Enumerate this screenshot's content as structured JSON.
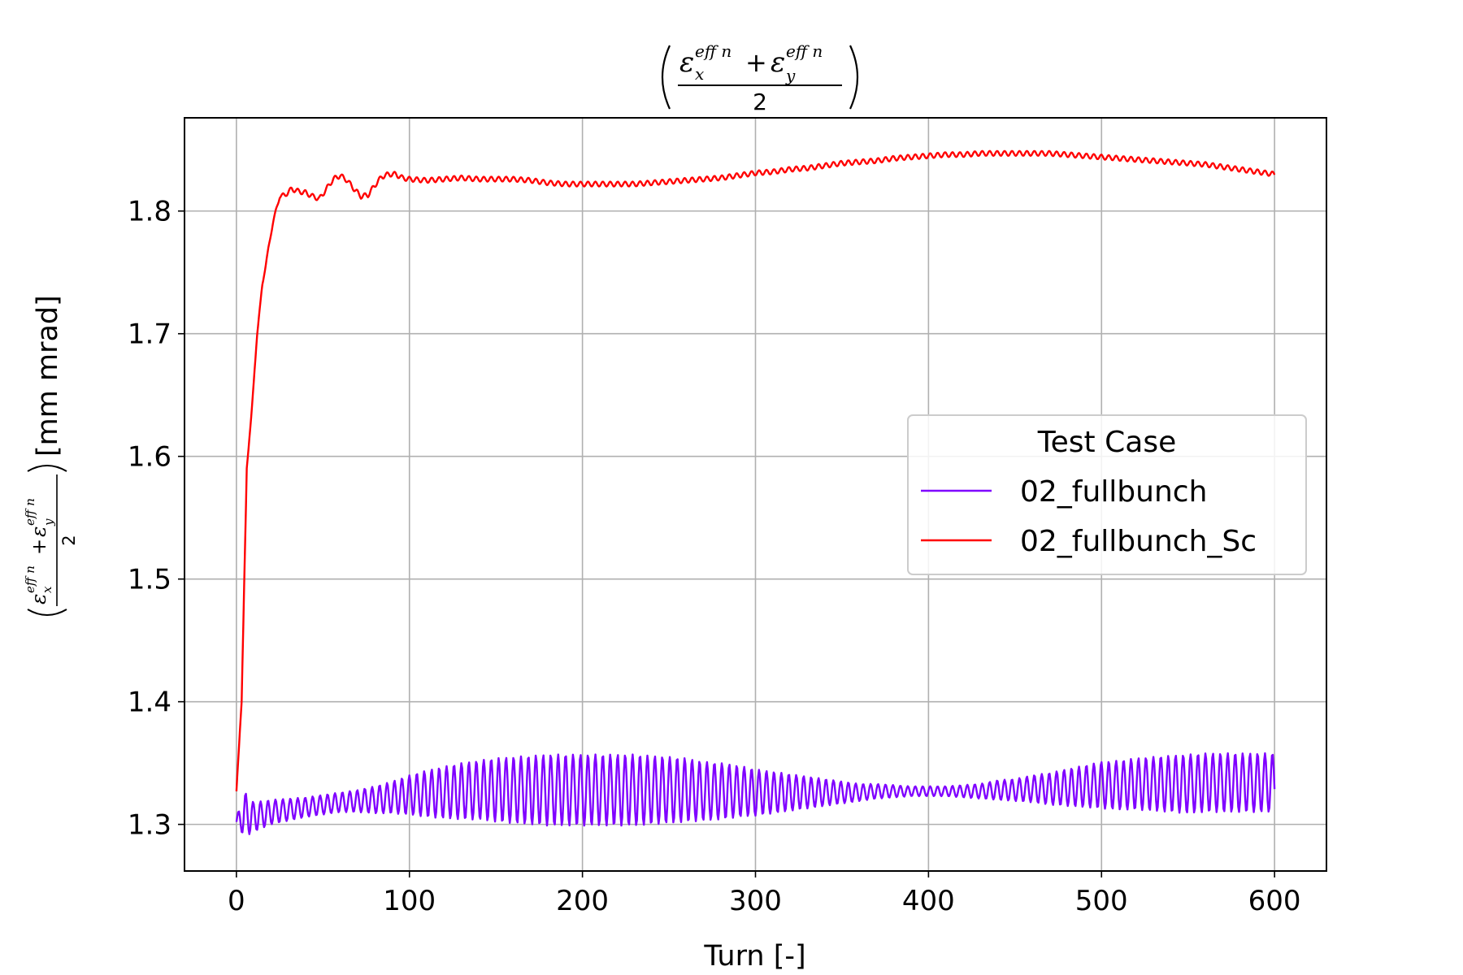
{
  "chart_data": {
    "type": "line",
    "title": {
      "main_symbol": "ε",
      "sup": "eff n",
      "sub_x": "x",
      "sub_y": "y",
      "plus": "+",
      "denominator": "2"
    },
    "xlabel": "Turn [-]",
    "ylabel_unit": "[mm mrad]",
    "xlim": [
      -30,
      630
    ],
    "ylim": [
      1.262,
      1.876
    ],
    "xticks": [
      0,
      100,
      200,
      300,
      400,
      500,
      600
    ],
    "xtick_labels": [
      "0",
      "100",
      "200",
      "300",
      "400",
      "500",
      "600"
    ],
    "yticks": [
      1.3,
      1.4,
      1.5,
      1.6,
      1.7,
      1.8
    ],
    "ytick_labels": [
      "1.3",
      "1.4",
      "1.5",
      "1.6",
      "1.7",
      "1.8"
    ],
    "grid": true,
    "legend": {
      "title": "Test Case",
      "placement": "center-right"
    },
    "series": [
      {
        "name": "02_fullbunch",
        "color": "#7f00ff",
        "osc_period": 4.3,
        "x": [
          0,
          5,
          10,
          20,
          30,
          40,
          50,
          60,
          70,
          80,
          90,
          100,
          110,
          120,
          130,
          140,
          150,
          160,
          170,
          180,
          190,
          200,
          210,
          220,
          230,
          240,
          250,
          260,
          270,
          280,
          290,
          300,
          310,
          320,
          330,
          340,
          350,
          360,
          370,
          380,
          390,
          400,
          410,
          420,
          430,
          440,
          450,
          460,
          470,
          480,
          490,
          500,
          510,
          520,
          530,
          540,
          550,
          560,
          570,
          580,
          590,
          600
        ],
        "center": [
          1.302,
          1.308,
          1.306,
          1.31,
          1.312,
          1.314,
          1.316,
          1.318,
          1.319,
          1.32,
          1.322,
          1.324,
          1.325,
          1.326,
          1.327,
          1.328,
          1.328,
          1.328,
          1.328,
          1.328,
          1.328,
          1.328,
          1.328,
          1.328,
          1.328,
          1.328,
          1.328,
          1.328,
          1.327,
          1.327,
          1.327,
          1.326,
          1.326,
          1.326,
          1.326,
          1.326,
          1.326,
          1.326,
          1.327,
          1.327,
          1.327,
          1.327,
          1.327,
          1.327,
          1.327,
          1.328,
          1.328,
          1.329,
          1.329,
          1.33,
          1.331,
          1.332,
          1.332,
          1.333,
          1.333,
          1.333,
          1.333,
          1.334,
          1.334,
          1.334,
          1.334,
          1.334
        ],
        "amplitude": [
          0.004,
          0.018,
          0.012,
          0.01,
          0.009,
          0.008,
          0.008,
          0.008,
          0.009,
          0.011,
          0.013,
          0.016,
          0.019,
          0.021,
          0.023,
          0.024,
          0.026,
          0.027,
          0.028,
          0.029,
          0.029,
          0.029,
          0.029,
          0.029,
          0.029,
          0.028,
          0.027,
          0.026,
          0.024,
          0.023,
          0.021,
          0.019,
          0.017,
          0.015,
          0.013,
          0.011,
          0.009,
          0.007,
          0.006,
          0.005,
          0.004,
          0.004,
          0.004,
          0.005,
          0.006,
          0.008,
          0.009,
          0.011,
          0.013,
          0.015,
          0.017,
          0.019,
          0.02,
          0.021,
          0.022,
          0.023,
          0.024,
          0.024,
          0.024,
          0.024,
          0.024,
          0.024
        ]
      },
      {
        "name": "02_fullbunch_Sc",
        "color": "#ff0000",
        "osc_period": 4.3,
        "osc_amplitude": 0.002,
        "x": [
          0,
          3,
          6,
          9,
          12,
          15,
          18,
          21,
          25,
          28,
          32,
          36,
          40,
          44,
          48,
          52,
          56,
          60,
          64,
          68,
          72,
          76,
          80,
          84,
          88,
          92,
          96,
          100,
          110,
          120,
          130,
          140,
          150,
          160,
          170,
          180,
          190,
          200,
          210,
          220,
          230,
          240,
          250,
          260,
          270,
          280,
          290,
          300,
          310,
          320,
          330,
          340,
          350,
          360,
          370,
          380,
          390,
          400,
          410,
          420,
          430,
          440,
          450,
          460,
          470,
          480,
          490,
          500,
          510,
          520,
          530,
          540,
          550,
          560,
          570,
          580,
          590,
          600
        ],
        "y": [
          1.327,
          1.4,
          1.59,
          1.64,
          1.7,
          1.74,
          1.765,
          1.79,
          1.812,
          1.813,
          1.818,
          1.816,
          1.815,
          1.812,
          1.81,
          1.818,
          1.826,
          1.829,
          1.825,
          1.818,
          1.812,
          1.813,
          1.821,
          1.828,
          1.83,
          1.83,
          1.827,
          1.826,
          1.825,
          1.826,
          1.827,
          1.826,
          1.826,
          1.826,
          1.825,
          1.823,
          1.822,
          1.822,
          1.822,
          1.822,
          1.822,
          1.823,
          1.824,
          1.825,
          1.826,
          1.827,
          1.829,
          1.831,
          1.832,
          1.834,
          1.835,
          1.837,
          1.839,
          1.84,
          1.841,
          1.843,
          1.844,
          1.845,
          1.846,
          1.846,
          1.847,
          1.847,
          1.847,
          1.847,
          1.847,
          1.846,
          1.845,
          1.844,
          1.843,
          1.842,
          1.841,
          1.84,
          1.839,
          1.838,
          1.836,
          1.834,
          1.832,
          1.83
        ]
      }
    ]
  }
}
